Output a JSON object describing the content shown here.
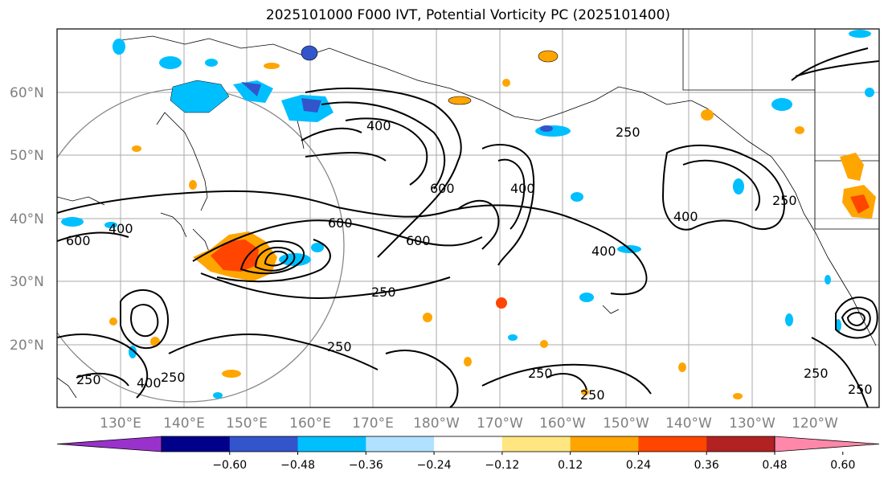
{
  "title": "2025101000 F000 IVT, Potential Vorticity PC (2025101400)",
  "lat_labels": [
    "60°N",
    "50°N",
    "40°N",
    "30°N",
    "20°N"
  ],
  "lon_labels": [
    "130°E",
    "140°E",
    "150°E",
    "160°E",
    "170°E",
    "180°W",
    "170°W",
    "160°W",
    "150°W",
    "140°W",
    "130°W",
    "120°W"
  ],
  "ivt_contour_labels": [
    "400",
    "250",
    "600",
    "600",
    "600",
    "250",
    "400",
    "400",
    "250",
    "250",
    "250",
    "250",
    "250",
    "250",
    "400",
    "600",
    "400",
    "250",
    "250",
    "400"
  ],
  "colorbar": {
    "ticks": [
      "−0.60",
      "−0.48",
      "−0.36",
      "−0.24",
      "−0.12",
      "0.12",
      "0.24",
      "0.36",
      "0.48",
      "0.60"
    ],
    "colors": [
      "#9932cc",
      "#00008b",
      "#3355cc",
      "#00bfff",
      "#b0e2ff",
      "#ffffff",
      "#ffe680",
      "#ffa500",
      "#ff4500",
      "#b22222",
      "#ff88aa"
    ]
  }
}
